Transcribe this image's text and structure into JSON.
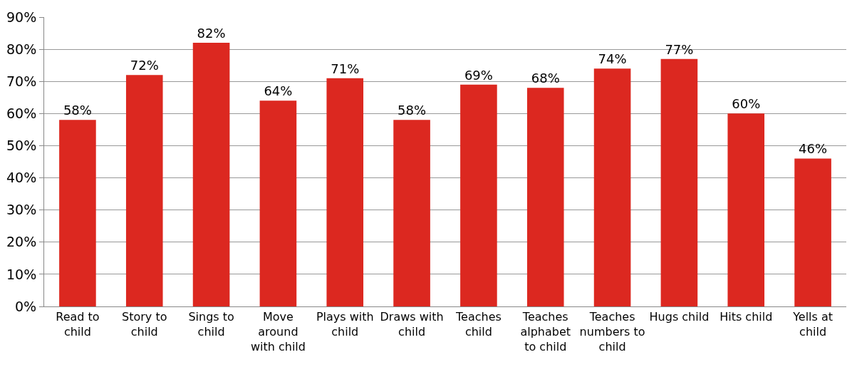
{
  "chart_data": {
    "type": "bar",
    "categories": [
      "Read to child",
      "Story to child",
      "Sings to child",
      "Move around with child",
      "Plays with child",
      "Draws with child",
      "Teaches child",
      "Teaches alphabet to child",
      "Teaches numbers to child",
      "Hugs child",
      "Hits child",
      "Yells at child"
    ],
    "values": [
      58,
      72,
      82,
      64,
      71,
      58,
      69,
      68,
      74,
      77,
      60,
      46
    ],
    "value_labels": [
      "58%",
      "72%",
      "82%",
      "64%",
      "71%",
      "58%",
      "69%",
      "68%",
      "74%",
      "77%",
      "60%",
      "46%"
    ],
    "color": "#dc2820",
    "ylim": [
      0,
      90
    ],
    "yticks": [
      {
        "value": 0,
        "label": "0%"
      },
      {
        "value": 10,
        "label": "10%"
      },
      {
        "value": 20,
        "label": "20%"
      },
      {
        "value": 30,
        "label": "30%"
      },
      {
        "value": 40,
        "label": "40%"
      },
      {
        "value": 50,
        "label": "50%"
      },
      {
        "value": 60,
        "label": "60%"
      },
      {
        "value": 70,
        "label": "70%"
      },
      {
        "value": 80,
        "label": "80%"
      },
      {
        "value": 90,
        "label": "90%"
      }
    ],
    "grid": "y"
  }
}
